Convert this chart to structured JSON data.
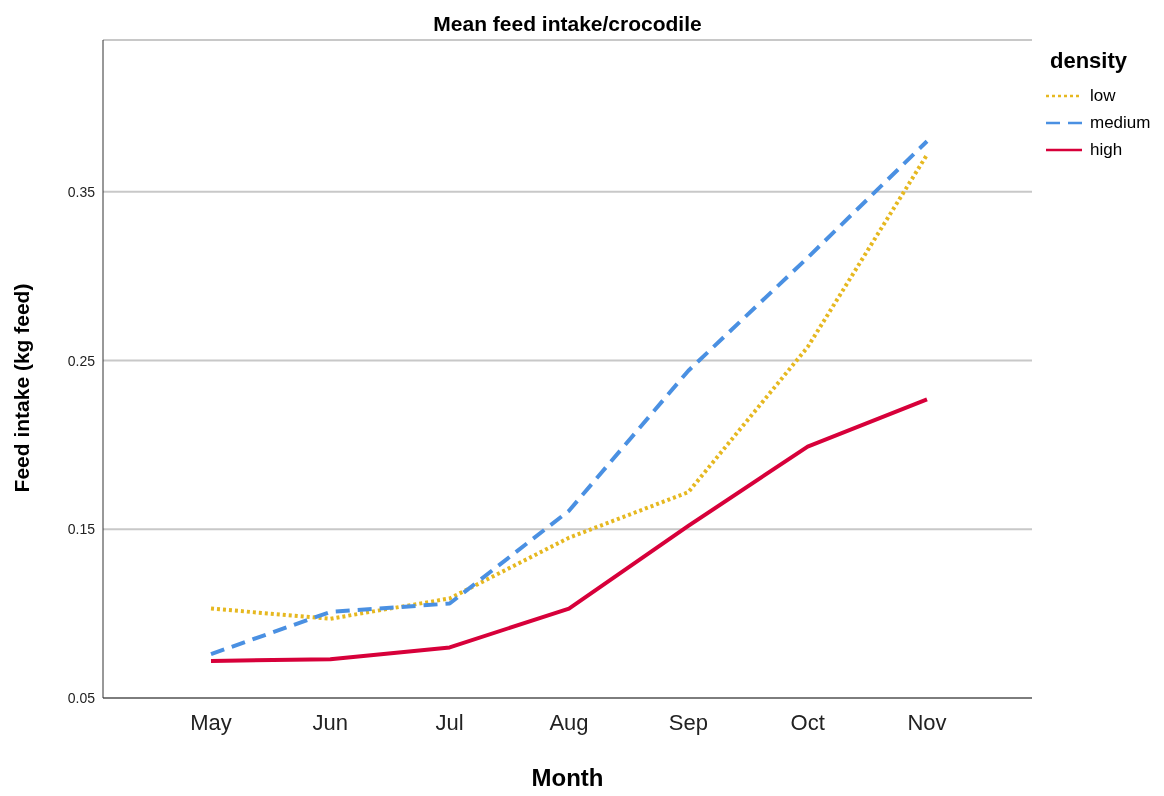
{
  "chart_data": {
    "type": "line",
    "title": "Mean feed intake/crocodile",
    "xlabel": "Month",
    "ylabel": "Feed intake (kg feed)",
    "legend_title": "density",
    "categories": [
      "May",
      "Jun",
      "Jul",
      "Aug",
      "Sep",
      "Oct",
      "Nov"
    ],
    "series": [
      {
        "name": "low",
        "color": "#e6b820",
        "line_style": "dotted",
        "values": [
          0.103,
          0.097,
          0.109,
          0.145,
          0.172,
          0.258,
          0.372
        ]
      },
      {
        "name": "medium",
        "color": "#4a90e2",
        "line_style": "dashed",
        "values": [
          0.076,
          0.101,
          0.106,
          0.161,
          0.244,
          0.311,
          0.38
        ]
      },
      {
        "name": "high",
        "color": "#d7003a",
        "line_style": "solid",
        "values": [
          0.072,
          0.073,
          0.08,
          0.103,
          0.152,
          0.199,
          0.227
        ]
      }
    ],
    "ylim": [
      0.05,
      0.44
    ],
    "yticks": [
      0.05,
      0.15,
      0.25,
      0.35
    ],
    "grid": "y",
    "legend": "top right",
    "marker": "none"
  }
}
